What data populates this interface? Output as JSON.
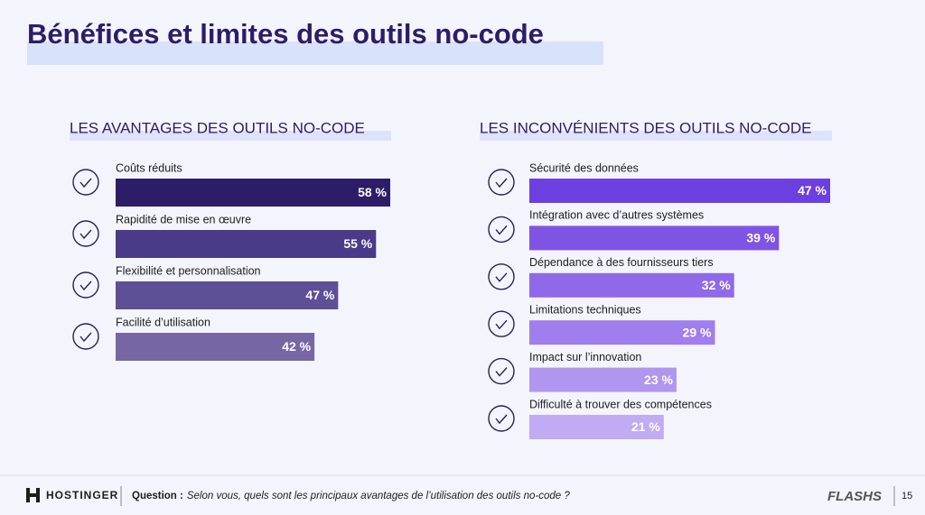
{
  "title": "Bénéfices et limites des outils no-code",
  "chart_data": [
    {
      "type": "bar",
      "title": "LES AVANTAGES DES OUTILS NO-CODE",
      "categories": [
        "Coûts réduits",
        "Rapidité de mise en œuvre",
        "Flexibilité et personnalisation",
        "Facilité d’utilisation"
      ],
      "values": [
        58,
        55,
        47,
        42
      ],
      "value_labels": [
        "58 %",
        "55 %",
        "47 %",
        "42 %"
      ],
      "colors": [
        "#2d1d68",
        "#4a3a88",
        "#5e4f96",
        "#7667a4"
      ]
    },
    {
      "type": "bar",
      "title": "LES INCONVÉNIENTS DES OUTILS NO-CODE",
      "categories": [
        "Sécurité des données",
        "Intégration avec d’autres systèmes",
        "Dépendance à des fournisseurs tiers",
        "Limitations techniques",
        "Impact sur l’innovation",
        "Difficulté à trouver des compétences"
      ],
      "values": [
        47,
        39,
        32,
        29,
        23,
        21
      ],
      "value_labels": [
        "47 %",
        "39 %",
        "32 %",
        "29 %",
        "23 %",
        "21 %"
      ],
      "colors": [
        "#6c3fe0",
        "#7f54e5",
        "#9069e9",
        "#a07eed",
        "#b196f0",
        "#c1abf3"
      ]
    }
  ],
  "footer": {
    "brand": "HOSTINGER",
    "question_label": "Question :",
    "question": "Selon vous, quels sont les principaux avantages de l’utilisation des outils no-code ?",
    "logo": "FLASHS",
    "page": "15"
  }
}
